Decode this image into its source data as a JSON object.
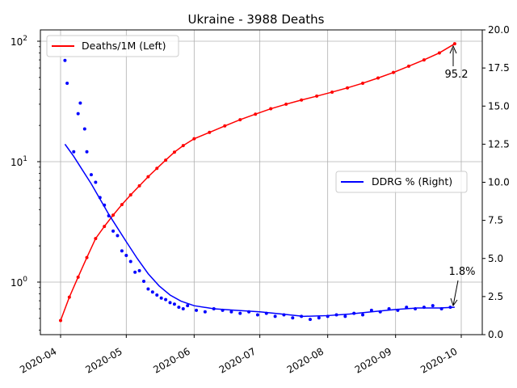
{
  "chart_data": {
    "type": "line",
    "title": "Ukraine - 3988 Deaths",
    "x_ticks": [
      "2020-04",
      "2020-05",
      "2020-06",
      "2020-07",
      "2020-08",
      "2020-09",
      "2020-10"
    ],
    "y_left_scale": "log",
    "y_left_ticks": [
      "10",
      "10",
      "10"
    ],
    "y_left_tick_exponents": [
      "0",
      "1",
      "2"
    ],
    "y_right_ticks": [
      "0.0",
      "2.5",
      "5.0",
      "7.5",
      "10.0",
      "12.5",
      "15.0",
      "17.5",
      "20.0"
    ],
    "grid": true,
    "legends": [
      {
        "label": "Deaths/1M (Left)",
        "placement": "upper-left",
        "color": "#ff0000"
      },
      {
        "label": "DDRG % (Right)",
        "placement": "center-right",
        "color": "#0000ff"
      }
    ],
    "annotations": [
      {
        "text": "95.2",
        "points_to": {
          "date": "2020-09-28",
          "value": 95.2
        }
      },
      {
        "text": "1.8%",
        "points_to": {
          "date": "2020-09-28",
          "value": 1.8
        }
      }
    ],
    "series": [
      {
        "name": "Deaths/1M (Left)",
        "axis": "left",
        "color": "#ff0000",
        "style": "line+markers",
        "points": [
          [
            "2020-04-01",
            0.48
          ],
          [
            "2020-04-05",
            0.75
          ],
          [
            "2020-04-09",
            1.1
          ],
          [
            "2020-04-13",
            1.6
          ],
          [
            "2020-04-17",
            2.3
          ],
          [
            "2020-04-21",
            2.9
          ],
          [
            "2020-04-25",
            3.6
          ],
          [
            "2020-04-29",
            4.4
          ],
          [
            "2020-05-03",
            5.3
          ],
          [
            "2020-05-07",
            6.3
          ],
          [
            "2020-05-11",
            7.5
          ],
          [
            "2020-05-15",
            8.8
          ],
          [
            "2020-05-19",
            10.3
          ],
          [
            "2020-05-23",
            12.0
          ],
          [
            "2020-05-27",
            13.6
          ],
          [
            "2020-06-01",
            15.5
          ],
          [
            "2020-06-08",
            17.5
          ],
          [
            "2020-06-15",
            19.8
          ],
          [
            "2020-06-22",
            22.3
          ],
          [
            "2020-06-29",
            24.8
          ],
          [
            "2020-07-06",
            27.5
          ],
          [
            "2020-07-13",
            30.0
          ],
          [
            "2020-07-20",
            32.5
          ],
          [
            "2020-07-27",
            35.0
          ],
          [
            "2020-08-03",
            37.8
          ],
          [
            "2020-08-10",
            41.0
          ],
          [
            "2020-08-17",
            44.8
          ],
          [
            "2020-08-24",
            49.5
          ],
          [
            "2020-08-31",
            55.0
          ],
          [
            "2020-09-07",
            62.0
          ],
          [
            "2020-09-14",
            70.0
          ],
          [
            "2020-09-21",
            80.0
          ],
          [
            "2020-09-28",
            95.2
          ]
        ]
      },
      {
        "name": "DDRG % (Right)",
        "axis": "right",
        "color": "#0000ff",
        "style": "line+markers",
        "points": [
          [
            "2020-04-03",
            12.5
          ],
          [
            "2020-04-07",
            11.7
          ],
          [
            "2020-04-11",
            10.8
          ],
          [
            "2020-04-15",
            9.9
          ],
          [
            "2020-04-19",
            8.9
          ],
          [
            "2020-04-23",
            7.9
          ],
          [
            "2020-04-27",
            7.0
          ],
          [
            "2020-05-01",
            6.1
          ],
          [
            "2020-05-06",
            5.0
          ],
          [
            "2020-05-11",
            4.0
          ],
          [
            "2020-05-16",
            3.2
          ],
          [
            "2020-05-21",
            2.6
          ],
          [
            "2020-05-26",
            2.2
          ],
          [
            "2020-06-01",
            1.9
          ],
          [
            "2020-06-10",
            1.7
          ],
          [
            "2020-06-20",
            1.6
          ],
          [
            "2020-07-01",
            1.5
          ],
          [
            "2020-07-11",
            1.35
          ],
          [
            "2020-07-21",
            1.2
          ],
          [
            "2020-08-01",
            1.25
          ],
          [
            "2020-08-11",
            1.35
          ],
          [
            "2020-08-21",
            1.5
          ],
          [
            "2020-09-01",
            1.65
          ],
          [
            "2020-09-11",
            1.75
          ],
          [
            "2020-09-21",
            1.75
          ],
          [
            "2020-09-28",
            1.8
          ]
        ],
        "scatter": [
          [
            "2020-04-03",
            18.0
          ],
          [
            "2020-04-04",
            16.5
          ],
          [
            "2020-04-07",
            12.0
          ],
          [
            "2020-04-09",
            14.5
          ],
          [
            "2020-04-10",
            15.2
          ],
          [
            "2020-04-12",
            13.5
          ],
          [
            "2020-04-13",
            12.0
          ],
          [
            "2020-04-15",
            10.5
          ],
          [
            "2020-04-17",
            10.0
          ],
          [
            "2020-04-19",
            9.0
          ],
          [
            "2020-04-21",
            8.5
          ],
          [
            "2020-04-23",
            7.8
          ],
          [
            "2020-04-25",
            6.8
          ],
          [
            "2020-04-27",
            6.5
          ],
          [
            "2020-04-29",
            5.5
          ],
          [
            "2020-05-01",
            5.2
          ],
          [
            "2020-05-03",
            4.8
          ],
          [
            "2020-05-05",
            4.1
          ],
          [
            "2020-05-07",
            4.2
          ],
          [
            "2020-05-09",
            3.5
          ],
          [
            "2020-05-11",
            3.0
          ],
          [
            "2020-05-13",
            2.8
          ],
          [
            "2020-05-15",
            2.6
          ],
          [
            "2020-05-17",
            2.4
          ],
          [
            "2020-05-19",
            2.3
          ],
          [
            "2020-05-21",
            2.1
          ],
          [
            "2020-05-23",
            2.0
          ],
          [
            "2020-05-25",
            1.8
          ],
          [
            "2020-05-27",
            1.7
          ],
          [
            "2020-05-29",
            1.9
          ],
          [
            "2020-06-02",
            1.6
          ],
          [
            "2020-06-06",
            1.5
          ],
          [
            "2020-06-10",
            1.7
          ],
          [
            "2020-06-14",
            1.6
          ],
          [
            "2020-06-18",
            1.5
          ],
          [
            "2020-06-22",
            1.4
          ],
          [
            "2020-06-26",
            1.5
          ],
          [
            "2020-06-30",
            1.3
          ],
          [
            "2020-07-04",
            1.4
          ],
          [
            "2020-07-08",
            1.2
          ],
          [
            "2020-07-12",
            1.3
          ],
          [
            "2020-07-16",
            1.1
          ],
          [
            "2020-07-20",
            1.2
          ],
          [
            "2020-07-24",
            1.0
          ],
          [
            "2020-07-28",
            1.1
          ],
          [
            "2020-08-01",
            1.2
          ],
          [
            "2020-08-05",
            1.3
          ],
          [
            "2020-08-09",
            1.2
          ],
          [
            "2020-08-13",
            1.4
          ],
          [
            "2020-08-17",
            1.3
          ],
          [
            "2020-08-21",
            1.6
          ],
          [
            "2020-08-25",
            1.5
          ],
          [
            "2020-08-29",
            1.7
          ],
          [
            "2020-09-02",
            1.6
          ],
          [
            "2020-09-06",
            1.8
          ],
          [
            "2020-09-10",
            1.7
          ],
          [
            "2020-09-14",
            1.8
          ],
          [
            "2020-09-18",
            1.9
          ],
          [
            "2020-09-22",
            1.7
          ],
          [
            "2020-09-26",
            1.8
          ]
        ]
      }
    ]
  }
}
